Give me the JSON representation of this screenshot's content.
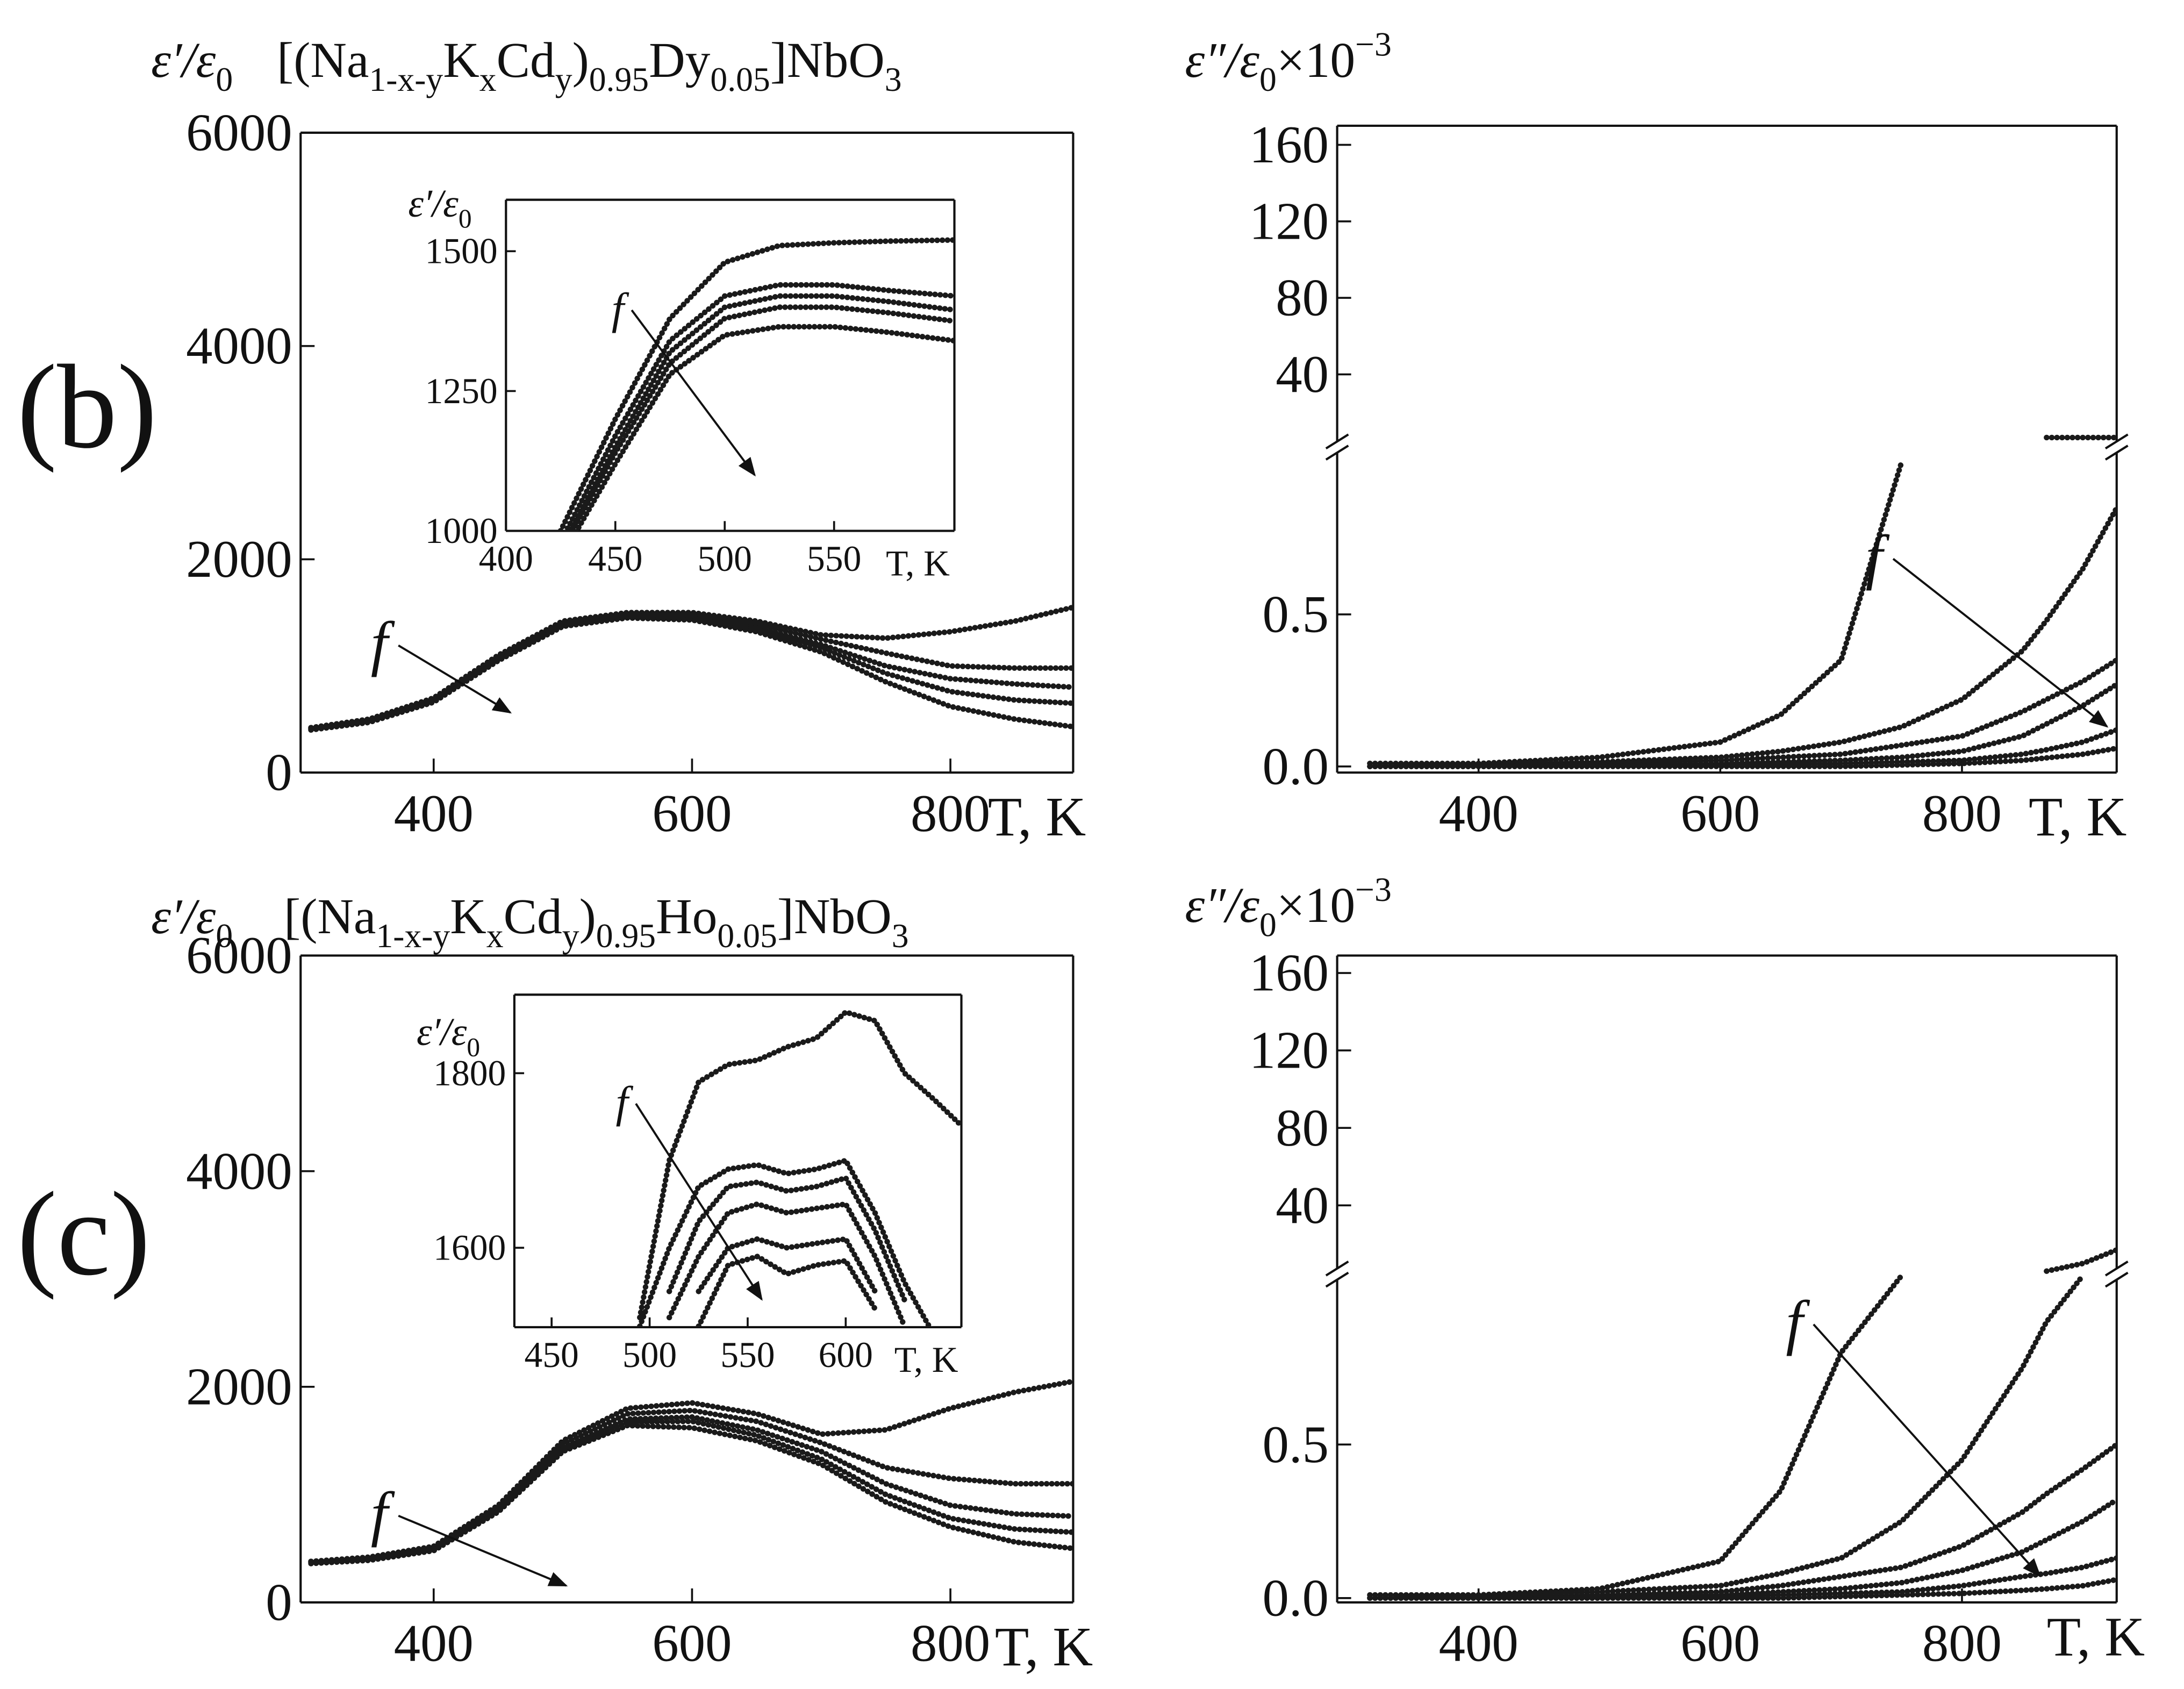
{
  "chart_data": [
    {
      "type": "line",
      "panel": "(b)",
      "title": [
        {
          "text": "[(Na"
        },
        {
          "text": "1-x-y",
          "shift": "sub"
        },
        {
          "text": "K"
        },
        {
          "text": "x",
          "shift": "sub"
        },
        {
          "text": "Cd"
        },
        {
          "text": "y",
          "shift": "sub"
        },
        {
          "text": ")"
        },
        {
          "text": "0.95",
          "shift": "sub"
        },
        {
          "text": "Dy"
        },
        {
          "text": "0.05",
          "shift": "sub"
        },
        {
          "text": "]NbO"
        },
        {
          "text": "3",
          "shift": "sub"
        }
      ],
      "ylabel": [
        {
          "text": "ε′/ε"
        },
        {
          "text": "0",
          "shift": "sub"
        }
      ],
      "xlabel": "T, K",
      "annotation": "f",
      "color": "#1a1a1a",
      "xlim": [
        297,
        895
      ],
      "ylim": [
        0,
        6000
      ],
      "xticks": [
        400,
        600,
        800
      ],
      "yticks": [
        0,
        2000,
        4000,
        6000
      ],
      "x": [
        305,
        350,
        400,
        450,
        500,
        550,
        600,
        650,
        700,
        750,
        800,
        850,
        895
      ],
      "series": [
        {
          "values": [
            420,
            500,
            700,
            1100,
            1420,
            1500,
            1500,
            1420,
            1290,
            1260,
            1320,
            1420,
            1550
          ]
        },
        {
          "values": [
            420,
            500,
            690,
            1090,
            1410,
            1480,
            1480,
            1390,
            1250,
            1120,
            1000,
            980,
            980
          ]
        },
        {
          "values": [
            410,
            490,
            680,
            1070,
            1390,
            1470,
            1460,
            1360,
            1200,
            1000,
            880,
            830,
            800
          ]
        },
        {
          "values": [
            410,
            480,
            670,
            1060,
            1380,
            1460,
            1450,
            1340,
            1170,
            930,
            760,
            680,
            650
          ]
        },
        {
          "values": [
            400,
            470,
            660,
            1050,
            1370,
            1450,
            1430,
            1320,
            1130,
            850,
            620,
            500,
            430
          ]
        }
      ]
    },
    {
      "type": "line",
      "ylabel": [
        {
          "text": "ε′/ε"
        },
        {
          "text": "0",
          "shift": "sub"
        }
      ],
      "xlabel": "T, K",
      "annotation": "f",
      "color": "#1a1a1a",
      "xlim": [
        400,
        605
      ],
      "ylim": [
        1000,
        1592
      ],
      "xticks": [
        400,
        450,
        500,
        550
      ],
      "yticks": [
        1000,
        1250,
        1500
      ],
      "x": [
        425,
        450,
        475,
        500,
        525,
        550,
        575,
        605
      ],
      "series": [
        {
          "values": [
            1000,
            1200,
            1380,
            1480,
            1510,
            1515,
            1518,
            1520
          ]
        },
        {
          "values": [
            980,
            1170,
            1340,
            1420,
            1440,
            1440,
            1430,
            1420
          ]
        },
        {
          "values": [
            970,
            1150,
            1320,
            1400,
            1420,
            1420,
            1410,
            1395
          ]
        },
        {
          "values": [
            960,
            1140,
            1300,
            1380,
            1400,
            1400,
            1390,
            1375
          ]
        },
        {
          "values": [
            950,
            1120,
            1280,
            1350,
            1365,
            1365,
            1355,
            1340
          ]
        }
      ]
    },
    {
      "type": "line",
      "ylabel": [
        {
          "text": "ε″/ε"
        },
        {
          "text": "0",
          "shift": "sub"
        },
        {
          "text": "×10"
        },
        {
          "text": "−3",
          "shift": "super"
        }
      ],
      "xlabel": "T, K",
      "annotation": "f",
      "color": "#1a1a1a",
      "xlim": [
        283,
        928
      ],
      "ylim": [
        -0.02,
        1.05
      ],
      "xticks": [
        400,
        600,
        800
      ],
      "yticks": [
        {
          "value": 0,
          "label": "0.0"
        },
        0.5
      ],
      "break_ylim": [
        2,
        170
      ],
      "break_yticks": [
        40,
        80,
        120,
        160
      ],
      "x": [
        310,
        400,
        500,
        600,
        650,
        700,
        750,
        800,
        850,
        870,
        900,
        928
      ],
      "series": [
        {
          "values": [
            0.01,
            0.01,
            0.03,
            0.08,
            0.17,
            0.35,
            1.0,
            null,
            null,
            null,
            null,
            null
          ]
        },
        {
          "values": [
            0.01,
            0.01,
            0.015,
            0.03,
            0.05,
            0.08,
            0.13,
            0.22,
            0.38,
            0.48,
            0.65,
            0.85
          ]
        },
        {
          "values": [
            0,
            0.005,
            0.01,
            0.02,
            0.03,
            0.04,
            0.07,
            0.1,
            0.18,
            0.22,
            0.28,
            0.35
          ]
        },
        {
          "values": [
            0,
            0,
            0.005,
            0.01,
            0.015,
            0.02,
            0.03,
            0.05,
            0.1,
            0.14,
            0.2,
            0.27
          ]
        },
        {
          "values": [
            0,
            0,
            0,
            0.005,
            0.008,
            0.01,
            0.015,
            0.02,
            0.04,
            0.055,
            0.08,
            0.12
          ]
        },
        {
          "values": [
            0,
            0,
            0,
            0,
            0,
            0,
            0.005,
            0.01,
            0.02,
            0.028,
            0.04,
            0.06
          ]
        },
        {
          "axis": "upper",
          "values": [
            null,
            null,
            null,
            null,
            null,
            null,
            null,
            null,
            null,
            7,
            7,
            7
          ]
        }
      ]
    },
    {
      "type": "line",
      "panel": "(c)",
      "title": [
        {
          "text": "[(Na"
        },
        {
          "text": "1-x-y",
          "shift": "sub"
        },
        {
          "text": "K"
        },
        {
          "text": "x",
          "shift": "sub"
        },
        {
          "text": "Cd"
        },
        {
          "text": "y",
          "shift": "sub"
        },
        {
          "text": ")"
        },
        {
          "text": "0.95",
          "shift": "sub"
        },
        {
          "text": "Ho"
        },
        {
          "text": "0.05",
          "shift": "sub"
        },
        {
          "text": "]NbO"
        },
        {
          "text": "3",
          "shift": "sub"
        }
      ],
      "ylabel": [
        {
          "text": "ε′/ε"
        },
        {
          "text": "0",
          "shift": "sub"
        }
      ],
      "xlabel": "T, K",
      "annotation": "f",
      "color": "#1a1a1a",
      "xlim": [
        297,
        895
      ],
      "ylim": [
        0,
        6000
      ],
      "xticks": [
        400,
        600,
        800
      ],
      "yticks": [
        0,
        2000,
        4000,
        6000
      ],
      "x": [
        305,
        350,
        400,
        450,
        500,
        550,
        600,
        650,
        700,
        750,
        800,
        850,
        895
      ],
      "series": [
        {
          "values": [
            380,
            420,
            520,
            900,
            1500,
            1800,
            1850,
            1750,
            1560,
            1600,
            1800,
            1950,
            2050
          ]
        },
        {
          "values": [
            380,
            410,
            510,
            880,
            1470,
            1750,
            1780,
            1680,
            1480,
            1250,
            1150,
            1100,
            1100
          ]
        },
        {
          "values": [
            370,
            400,
            500,
            860,
            1440,
            1700,
            1720,
            1600,
            1400,
            1100,
            900,
            820,
            800
          ]
        },
        {
          "values": [
            370,
            400,
            490,
            850,
            1420,
            1670,
            1680,
            1550,
            1330,
            1000,
            780,
            680,
            650
          ]
        },
        {
          "values": [
            360,
            390,
            480,
            840,
            1400,
            1640,
            1620,
            1500,
            1280,
            930,
            700,
            560,
            500
          ]
        }
      ]
    },
    {
      "type": "line",
      "ylabel": [
        {
          "text": "ε′/ε"
        },
        {
          "text": "0",
          "shift": "sub"
        }
      ],
      "xlabel": "T, K",
      "annotation": "f",
      "color": "#1a1a1a",
      "xlim": [
        431,
        659
      ],
      "ylim": [
        1509,
        1890
      ],
      "xticks": [
        450,
        500,
        550,
        600
      ],
      "yticks": [
        1600,
        1800
      ],
      "x": [
        495,
        510,
        525,
        540,
        555,
        570,
        585,
        600,
        615,
        630,
        645,
        659
      ],
      "series": [
        {
          "values": [
            1520,
            1700,
            1790,
            1810,
            1815,
            1830,
            1840,
            1870,
            1860,
            1800,
            1770,
            1740
          ]
        },
        {
          "values": [
            1510,
            1600,
            1670,
            1690,
            1695,
            1685,
            1690,
            1700,
            1640,
            1560,
            1500,
            null
          ]
        },
        {
          "values": [
            null,
            1550,
            1630,
            1670,
            1675,
            1665,
            1670,
            1680,
            1620,
            1540,
            null,
            null
          ]
        },
        {
          "values": [
            null,
            1520,
            1590,
            1640,
            1650,
            1640,
            1645,
            1650,
            1590,
            1510,
            null,
            null
          ]
        },
        {
          "values": [
            null,
            null,
            1550,
            1600,
            1610,
            1600,
            1605,
            1610,
            1550,
            null,
            null,
            null
          ]
        },
        {
          "values": [
            null,
            null,
            1510,
            1580,
            1590,
            1570,
            1580,
            1585,
            1530,
            null,
            null,
            null
          ]
        }
      ]
    },
    {
      "type": "line",
      "ylabel": [
        {
          "text": "ε″/ε"
        },
        {
          "text": "0",
          "shift": "sub"
        },
        {
          "text": "×10"
        },
        {
          "text": "−3",
          "shift": "super"
        }
      ],
      "xlabel": "T, K",
      "annotation": "f",
      "color": "#1a1a1a",
      "xlim": [
        283,
        928
      ],
      "ylim": [
        -0.014,
        1.055
      ],
      "xticks": [
        400,
        600,
        800
      ],
      "yticks": [
        {
          "value": 0,
          "label": "0.0"
        },
        0.5
      ],
      "break_ylim": [
        4.5,
        169
      ],
      "break_yticks": [
        40,
        80,
        120,
        160
      ],
      "x": [
        310,
        400,
        500,
        600,
        650,
        700,
        750,
        800,
        850,
        870,
        900,
        928
      ],
      "series": [
        {
          "values": [
            0.01,
            0.01,
            0.03,
            0.12,
            0.35,
            0.8,
            1.05,
            null,
            null,
            null,
            null,
            null
          ]
        },
        {
          "values": [
            0.01,
            0.01,
            0.02,
            0.04,
            0.08,
            0.13,
            0.25,
            0.45,
            0.75,
            0.9,
            1.05,
            null
          ]
        },
        {
          "values": [
            0,
            0.005,
            0.01,
            0.02,
            0.04,
            0.07,
            0.1,
            0.17,
            0.28,
            0.34,
            0.42,
            0.5
          ]
        },
        {
          "values": [
            0,
            0,
            0.005,
            0.01,
            0.02,
            0.03,
            0.05,
            0.09,
            0.15,
            0.19,
            0.25,
            0.32
          ]
        },
        {
          "values": [
            0,
            0,
            0,
            0.005,
            0.01,
            0.015,
            0.02,
            0.04,
            0.07,
            0.08,
            0.1,
            0.13
          ]
        },
        {
          "values": [
            0,
            0,
            0,
            0,
            0,
            0.005,
            0.01,
            0.015,
            0.025,
            0.03,
            0.04,
            0.06
          ]
        },
        {
          "axis": "upper",
          "values": [
            null,
            null,
            null,
            null,
            null,
            null,
            null,
            null,
            null,
            6,
            10,
            17
          ]
        }
      ]
    }
  ]
}
